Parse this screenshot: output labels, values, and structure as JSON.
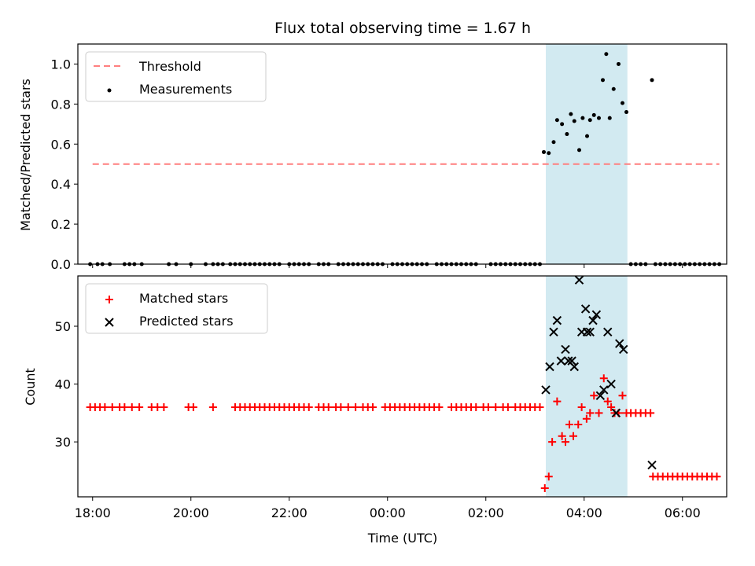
{
  "chart_data": [
    {
      "type": "scatter",
      "title": "Flux total observing time = 1.67 h",
      "xlabel": "",
      "ylabel": "Matched/Predicted stars",
      "xlim": [
        -1.3,
        11.9
      ],
      "ylim": [
        0.0,
        1.1
      ],
      "yticks": [
        0.0,
        0.2,
        0.4,
        0.6,
        0.8,
        1.0
      ],
      "ytick_labels": [
        "0.0",
        "0.2",
        "0.4",
        "0.6",
        "0.8",
        "1.0"
      ],
      "xticks": [
        -1,
        1,
        3,
        5,
        7,
        9,
        11
      ],
      "legend_position": "top-left",
      "shaded_span": [
        8.22,
        9.88
      ],
      "shade_color": "#add8e6",
      "series": [
        {
          "name": "Threshold",
          "style": "dashed-line",
          "color": "#ff7f7f",
          "points": [
            [
              -1.0,
              0.5
            ],
            [
              11.75,
              0.5
            ]
          ]
        },
        {
          "name": "Measurements",
          "style": "dot",
          "color": "#000000",
          "points": [
            [
              -1.05,
              0
            ],
            [
              -0.9,
              0
            ],
            [
              -0.8,
              0
            ],
            [
              -0.65,
              0
            ],
            [
              -0.35,
              0
            ],
            [
              -0.25,
              0
            ],
            [
              -0.15,
              0
            ],
            [
              0.0,
              0
            ],
            [
              0.55,
              0
            ],
            [
              0.7,
              0
            ],
            [
              1.0,
              0
            ],
            [
              1.3,
              0
            ],
            [
              1.45,
              0
            ],
            [
              1.55,
              0
            ],
            [
              1.65,
              0
            ],
            [
              1.8,
              0
            ],
            [
              1.9,
              0
            ],
            [
              2.0,
              0
            ],
            [
              2.1,
              0
            ],
            [
              2.2,
              0
            ],
            [
              2.3,
              0
            ],
            [
              2.4,
              0
            ],
            [
              2.5,
              0
            ],
            [
              2.6,
              0
            ],
            [
              2.7,
              0
            ],
            [
              2.8,
              0
            ],
            [
              3.0,
              0
            ],
            [
              3.1,
              0
            ],
            [
              3.2,
              0
            ],
            [
              3.3,
              0
            ],
            [
              3.4,
              0
            ],
            [
              3.6,
              0
            ],
            [
              3.7,
              0
            ],
            [
              3.8,
              0
            ],
            [
              4.0,
              0
            ],
            [
              4.1,
              0
            ],
            [
              4.2,
              0
            ],
            [
              4.3,
              0
            ],
            [
              4.4,
              0
            ],
            [
              4.5,
              0
            ],
            [
              4.6,
              0
            ],
            [
              4.7,
              0
            ],
            [
              4.8,
              0
            ],
            [
              4.9,
              0
            ],
            [
              5.1,
              0
            ],
            [
              5.2,
              0
            ],
            [
              5.3,
              0
            ],
            [
              5.4,
              0
            ],
            [
              5.5,
              0
            ],
            [
              5.6,
              0
            ],
            [
              5.7,
              0
            ],
            [
              5.8,
              0
            ],
            [
              6.0,
              0
            ],
            [
              6.1,
              0
            ],
            [
              6.2,
              0
            ],
            [
              6.3,
              0
            ],
            [
              6.4,
              0
            ],
            [
              6.5,
              0
            ],
            [
              6.6,
              0
            ],
            [
              6.7,
              0
            ],
            [
              6.8,
              0
            ],
            [
              7.1,
              0
            ],
            [
              7.2,
              0
            ],
            [
              7.3,
              0
            ],
            [
              7.4,
              0
            ],
            [
              7.5,
              0
            ],
            [
              7.6,
              0
            ],
            [
              7.7,
              0
            ],
            [
              7.8,
              0
            ],
            [
              7.9,
              0
            ],
            [
              8.0,
              0
            ],
            [
              8.1,
              0
            ],
            [
              8.18,
              0.56
            ],
            [
              8.28,
              0.555
            ],
            [
              8.38,
              0.61
            ],
            [
              8.45,
              0.72
            ],
            [
              8.55,
              0.7
            ],
            [
              8.65,
              0.65
            ],
            [
              8.73,
              0.75
            ],
            [
              8.8,
              0.715
            ],
            [
              8.9,
              0.57
            ],
            [
              8.97,
              0.73
            ],
            [
              9.06,
              0.64
            ],
            [
              9.12,
              0.72
            ],
            [
              9.2,
              0.745
            ],
            [
              9.3,
              0.73
            ],
            [
              9.38,
              0.92
            ],
            [
              9.45,
              1.05
            ],
            [
              9.52,
              0.73
            ],
            [
              9.6,
              0.875
            ],
            [
              9.7,
              1.0
            ],
            [
              9.78,
              0.805
            ],
            [
              9.86,
              0.76
            ],
            [
              9.95,
              0
            ],
            [
              10.05,
              0
            ],
            [
              10.15,
              0
            ],
            [
              10.25,
              0
            ],
            [
              10.45,
              0
            ],
            [
              10.55,
              0
            ],
            [
              10.65,
              0
            ],
            [
              10.75,
              0
            ],
            [
              10.85,
              0
            ],
            [
              10.95,
              0
            ],
            [
              11.05,
              0
            ],
            [
              11.15,
              0
            ],
            [
              11.25,
              0
            ],
            [
              11.35,
              0
            ],
            [
              11.45,
              0
            ],
            [
              11.55,
              0
            ],
            [
              11.65,
              0
            ],
            [
              11.75,
              0
            ],
            [
              10.38,
              0.92
            ]
          ]
        }
      ]
    },
    {
      "type": "scatter",
      "title": "",
      "xlabel": "Time (UTC)",
      "ylabel": "Count",
      "xlim": [
        -1.3,
        11.9
      ],
      "ylim": [
        20.5,
        58.7
      ],
      "yticks": [
        30,
        40,
        50
      ],
      "ytick_labels": [
        "30",
        "40",
        "50"
      ],
      "xticks": [
        -1,
        1,
        3,
        5,
        7,
        9,
        11
      ],
      "xtick_labels": [
        "18:00",
        "20:00",
        "22:00",
        "00:00",
        "02:00",
        "04:00",
        "06:00"
      ],
      "legend_position": "top-left",
      "shaded_span": [
        8.22,
        9.88
      ],
      "shade_color": "#add8e6",
      "series": [
        {
          "name": "Matched stars",
          "style": "plus",
          "color": "#ff0000",
          "points": [
            [
              -1.05,
              36
            ],
            [
              -0.95,
              36
            ],
            [
              -0.85,
              36
            ],
            [
              -0.75,
              36
            ],
            [
              -0.6,
              36
            ],
            [
              -0.45,
              36
            ],
            [
              -0.35,
              36
            ],
            [
              -0.2,
              36
            ],
            [
              -0.05,
              36
            ],
            [
              0.2,
              36
            ],
            [
              0.32,
              36
            ],
            [
              0.45,
              36
            ],
            [
              0.95,
              36
            ],
            [
              1.05,
              36
            ],
            [
              1.45,
              36
            ],
            [
              1.9,
              36
            ],
            [
              2.0,
              36
            ],
            [
              2.1,
              36
            ],
            [
              2.2,
              36
            ],
            [
              2.3,
              36
            ],
            [
              2.4,
              36
            ],
            [
              2.5,
              36
            ],
            [
              2.6,
              36
            ],
            [
              2.7,
              36
            ],
            [
              2.8,
              36
            ],
            [
              2.9,
              36
            ],
            [
              3.0,
              36
            ],
            [
              3.1,
              36
            ],
            [
              3.2,
              36
            ],
            [
              3.3,
              36
            ],
            [
              3.4,
              36
            ],
            [
              3.6,
              36
            ],
            [
              3.7,
              36
            ],
            [
              3.8,
              36
            ],
            [
              3.95,
              36
            ],
            [
              4.05,
              36
            ],
            [
              4.2,
              36
            ],
            [
              4.35,
              36
            ],
            [
              4.5,
              36
            ],
            [
              4.6,
              36
            ],
            [
              4.7,
              36
            ],
            [
              4.95,
              36
            ],
            [
              5.05,
              36
            ],
            [
              5.15,
              36
            ],
            [
              5.25,
              36
            ],
            [
              5.35,
              36
            ],
            [
              5.45,
              36
            ],
            [
              5.55,
              36
            ],
            [
              5.65,
              36
            ],
            [
              5.75,
              36
            ],
            [
              5.85,
              36
            ],
            [
              5.95,
              36
            ],
            [
              6.05,
              36
            ],
            [
              6.3,
              36
            ],
            [
              6.4,
              36
            ],
            [
              6.5,
              36
            ],
            [
              6.6,
              36
            ],
            [
              6.7,
              36
            ],
            [
              6.8,
              36
            ],
            [
              6.95,
              36
            ],
            [
              7.05,
              36
            ],
            [
              7.2,
              36
            ],
            [
              7.35,
              36
            ],
            [
              7.45,
              36
            ],
            [
              7.6,
              36
            ],
            [
              7.7,
              36
            ],
            [
              7.8,
              36
            ],
            [
              7.9,
              36
            ],
            [
              8.0,
              36
            ],
            [
              8.1,
              36
            ],
            [
              8.2,
              22
            ],
            [
              8.28,
              24
            ],
            [
              8.35,
              30
            ],
            [
              8.45,
              37
            ],
            [
              8.55,
              31
            ],
            [
              8.62,
              30
            ],
            [
              8.7,
              33
            ],
            [
              8.78,
              31
            ],
            [
              8.88,
              33
            ],
            [
              8.95,
              36
            ],
            [
              9.05,
              34
            ],
            [
              9.12,
              35
            ],
            [
              9.2,
              38
            ],
            [
              9.3,
              35
            ],
            [
              9.4,
              41
            ],
            [
              9.48,
              37
            ],
            [
              9.55,
              36
            ],
            [
              9.62,
              35
            ],
            [
              9.7,
              35
            ],
            [
              9.78,
              38
            ],
            [
              9.86,
              35
            ],
            [
              9.95,
              35
            ],
            [
              10.05,
              35
            ],
            [
              10.15,
              35
            ],
            [
              10.25,
              35
            ],
            [
              10.35,
              35
            ],
            [
              10.4,
              24
            ],
            [
              10.5,
              24
            ],
            [
              10.6,
              24
            ],
            [
              10.7,
              24
            ],
            [
              10.8,
              24
            ],
            [
              10.9,
              24
            ],
            [
              11.0,
              24
            ],
            [
              11.1,
              24
            ],
            [
              11.2,
              24
            ],
            [
              11.3,
              24
            ],
            [
              11.4,
              24
            ],
            [
              11.5,
              24
            ],
            [
              11.6,
              24
            ],
            [
              11.7,
              24
            ]
          ]
        },
        {
          "name": "Predicted stars",
          "style": "x",
          "color": "#000000",
          "points": [
            [
              8.22,
              39
            ],
            [
              8.3,
              43
            ],
            [
              8.38,
              49
            ],
            [
              8.45,
              51
            ],
            [
              8.53,
              44
            ],
            [
              8.62,
              46
            ],
            [
              8.68,
              44
            ],
            [
              8.75,
              44
            ],
            [
              8.8,
              43
            ],
            [
              8.9,
              58
            ],
            [
              8.95,
              49
            ],
            [
              9.03,
              53
            ],
            [
              9.06,
              49
            ],
            [
              9.12,
              49
            ],
            [
              9.18,
              51
            ],
            [
              9.25,
              52
            ],
            [
              9.33,
              38
            ],
            [
              9.4,
              39
            ],
            [
              9.48,
              49
            ],
            [
              9.55,
              40
            ],
            [
              9.65,
              35
            ],
            [
              9.72,
              47
            ],
            [
              9.8,
              46
            ],
            [
              10.38,
              26
            ]
          ]
        }
      ]
    }
  ]
}
